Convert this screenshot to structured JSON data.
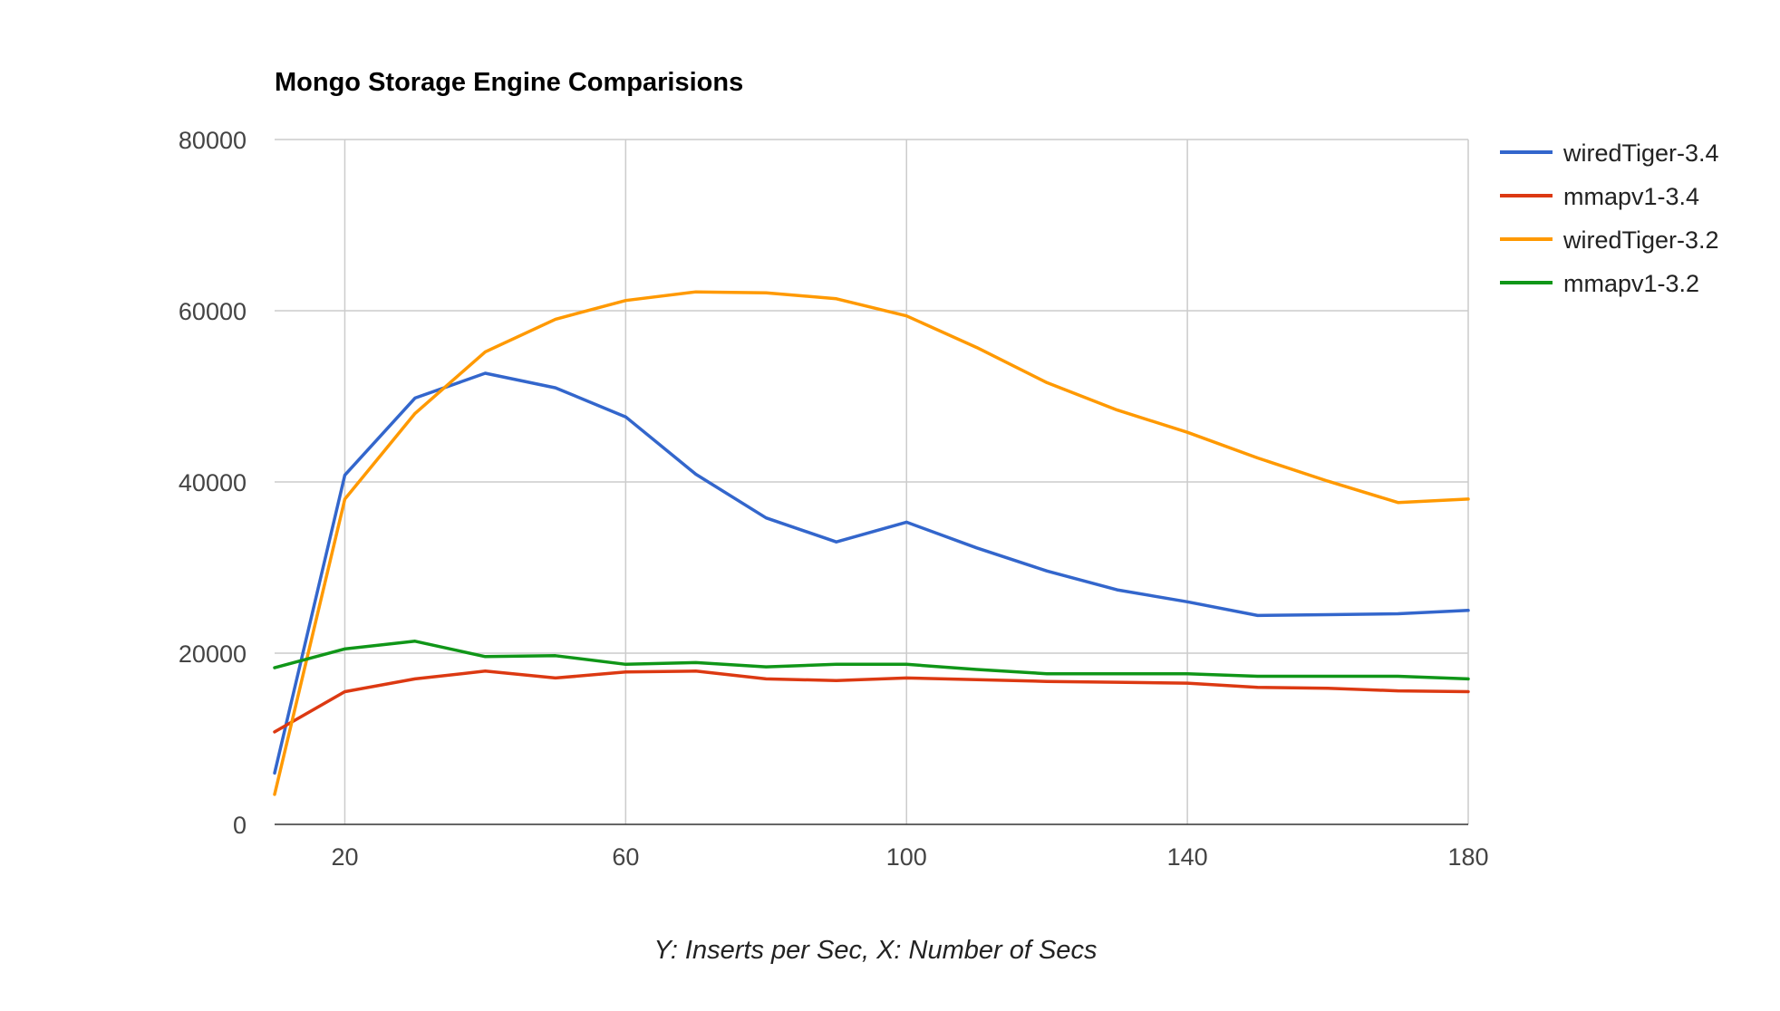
{
  "chart_data": {
    "type": "line",
    "title": "Mongo Storage Engine Comparisions",
    "caption": "Y: Inserts per Sec, X: Number of Secs",
    "x": [
      10,
      20,
      30,
      40,
      50,
      60,
      70,
      80,
      90,
      100,
      110,
      120,
      130,
      140,
      150,
      160,
      170,
      180
    ],
    "xlim": [
      10,
      180
    ],
    "ylim": [
      0,
      80000
    ],
    "x_ticks": [
      20,
      60,
      100,
      140,
      180
    ],
    "y_ticks": [
      0,
      20000,
      40000,
      60000,
      80000
    ],
    "grid": true,
    "legend_position": "right",
    "series": [
      {
        "name": "wiredTiger-3.4",
        "color": "#3366cc",
        "values": [
          6000,
          40800,
          49800,
          52700,
          51000,
          47600,
          40900,
          35800,
          33000,
          35300,
          32300,
          29600,
          27400,
          26000,
          24400,
          24500,
          24600,
          25000
        ]
      },
      {
        "name": "mmapv1-3.4",
        "color": "#dc3912",
        "values": [
          10800,
          15500,
          17000,
          17900,
          17100,
          17800,
          17900,
          17000,
          16800,
          17100,
          16900,
          16700,
          16600,
          16500,
          16000,
          15900,
          15600,
          15500
        ]
      },
      {
        "name": "wiredTiger-3.2",
        "color": "#ff9900",
        "values": [
          3500,
          38000,
          48000,
          55200,
          59000,
          61200,
          62200,
          62100,
          61400,
          59400,
          55700,
          51600,
          48400,
          45800,
          42800,
          40100,
          37600,
          38000
        ]
      },
      {
        "name": "mmapv1-3.2",
        "color": "#109618",
        "values": [
          18300,
          20500,
          21400,
          19600,
          19700,
          18700,
          18900,
          18400,
          18700,
          18700,
          18100,
          17600,
          17600,
          17600,
          17300,
          17300,
          17300,
          17000
        ]
      }
    ]
  }
}
